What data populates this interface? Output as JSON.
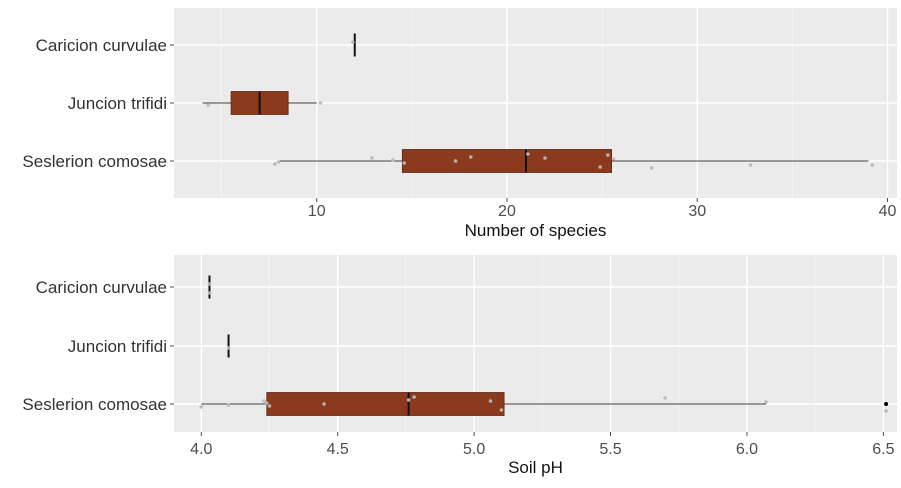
{
  "colors": {
    "panel_bg": "#ebebeb",
    "grid_major": "#ffffff",
    "box_fill": "#8b3a1e",
    "box_stroke": "#2a1a14",
    "whisker": "#3a3a3a",
    "point": "#b8b8b8",
    "outlier": "#000000",
    "text": "#333333",
    "tick": "#4d4d4d"
  },
  "chart_data": [
    {
      "type": "boxplot",
      "orientation": "horizontal",
      "xlabel": "Number of species",
      "xlim": [
        2.5,
        40.5
      ],
      "x_ticks": [
        10,
        20,
        30,
        40
      ],
      "x_tick_labels": [
        "10",
        "20",
        "30",
        "40"
      ],
      "categories": [
        "Caricion curvulae",
        "Juncion trifidi",
        "Seslerion comosae"
      ],
      "boxes": [
        {
          "name": "Caricion curvulae",
          "min": 12,
          "q1": 12,
          "median": 12,
          "q3": 12,
          "max": 12,
          "outliers": []
        },
        {
          "name": "Juncion trifidi",
          "min": 4,
          "q1": 5.5,
          "median": 7,
          "q3": 8.5,
          "max": 10,
          "outliers": []
        },
        {
          "name": "Seslerion comosae",
          "min": 8,
          "q1": 14.5,
          "median": 21,
          "q3": 25.5,
          "max": 39,
          "outliers": []
        }
      ],
      "points": [
        {
          "category": "Caricion curvulae",
          "values": [
            11.9
          ]
        },
        {
          "category": "Juncion trifidi",
          "values": [
            4.3,
            10.2
          ]
        },
        {
          "category": "Seslerion comosae",
          "values": [
            7.8,
            8.0,
            12.9,
            14.0,
            14.6,
            17.3,
            18.1,
            21.1,
            22.0,
            24.9,
            25.3,
            25.6,
            27.6,
            32.8,
            39.2
          ]
        }
      ]
    },
    {
      "type": "boxplot",
      "orientation": "horizontal",
      "xlabel": "Soil pH",
      "xlim": [
        3.9,
        6.55
      ],
      "x_ticks": [
        4.0,
        4.5,
        5.0,
        5.5,
        6.0,
        6.5
      ],
      "x_tick_labels": [
        "4.0",
        "4.5",
        "5.0",
        "5.5",
        "6.0",
        "6.5"
      ],
      "categories": [
        "Caricion curvulae",
        "Juncion trifidi",
        "Seslerion comosae"
      ],
      "boxes": [
        {
          "name": "Caricion curvulae",
          "min": 4.03,
          "q1": 4.03,
          "median": 4.03,
          "q3": 4.03,
          "max": 4.03,
          "outliers": []
        },
        {
          "name": "Juncion trifidi",
          "min": 4.1,
          "q1": 4.1,
          "median": 4.1,
          "q3": 4.1,
          "max": 4.1,
          "outliers": []
        },
        {
          "name": "Seslerion comosae",
          "min": 4.0,
          "q1": 4.24,
          "median": 4.76,
          "q3": 5.11,
          "max": 6.07,
          "outliers": [
            6.51
          ]
        }
      ],
      "points": [
        {
          "category": "Caricion curvulae",
          "values": [
            4.03,
            4.03
          ]
        },
        {
          "category": "Juncion trifidi",
          "values": [
            4.1
          ]
        },
        {
          "category": "Seslerion comosae",
          "values": [
            4.0,
            4.1,
            4.23,
            4.24,
            4.25,
            4.45,
            4.76,
            4.78,
            5.06,
            5.1,
            5.7,
            6.07,
            6.51
          ]
        }
      ]
    }
  ]
}
